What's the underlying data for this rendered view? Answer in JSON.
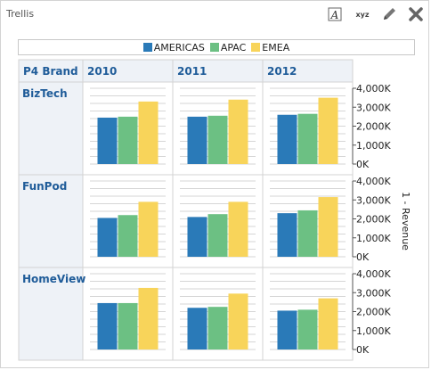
{
  "panel": {
    "title": "Trellis"
  },
  "toolbar": {
    "icons": [
      "text-format-icon",
      "xyz-icon",
      "pencil-icon",
      "close-icon"
    ],
    "xyz_label": "xyz",
    "text_label": "A"
  },
  "colors": {
    "AMERICAS": "#2a7ab8",
    "APAC": "#6cc083",
    "EMEA": "#f8d45a",
    "header": "#1f5c99"
  },
  "chart_data": {
    "type": "bar",
    "layout": "trellis",
    "corner_label": "P4 Brand",
    "columns": [
      "2010",
      "2011",
      "2012"
    ],
    "rows": [
      "BizTech",
      "FunPod",
      "HomeView"
    ],
    "series_names": [
      "AMERICAS",
      "APAC",
      "EMEA"
    ],
    "legend_position": "top",
    "ylabel": "1 - Revenue",
    "ylim": [
      0,
      4000
    ],
    "yticks": [
      "4,000K",
      "3,000K",
      "2,000K",
      "1,000K",
      "0K"
    ],
    "grid": true,
    "cells": [
      [
        {
          "AMERICAS": 2450,
          "APAC": 2500,
          "EMEA": 3300
        },
        {
          "AMERICAS": 2500,
          "APAC": 2550,
          "EMEA": 3400
        },
        {
          "AMERICAS": 2600,
          "APAC": 2650,
          "EMEA": 3500
        }
      ],
      [
        {
          "AMERICAS": 2050,
          "APAC": 2200,
          "EMEA": 2900
        },
        {
          "AMERICAS": 2100,
          "APAC": 2250,
          "EMEA": 2900
        },
        {
          "AMERICAS": 2300,
          "APAC": 2450,
          "EMEA": 3150
        }
      ],
      [
        {
          "AMERICAS": 2450,
          "APAC": 2450,
          "EMEA": 3250
        },
        {
          "AMERICAS": 2200,
          "APAC": 2250,
          "EMEA": 2950
        },
        {
          "AMERICAS": 2050,
          "APAC": 2100,
          "EMEA": 2700
        }
      ]
    ]
  }
}
